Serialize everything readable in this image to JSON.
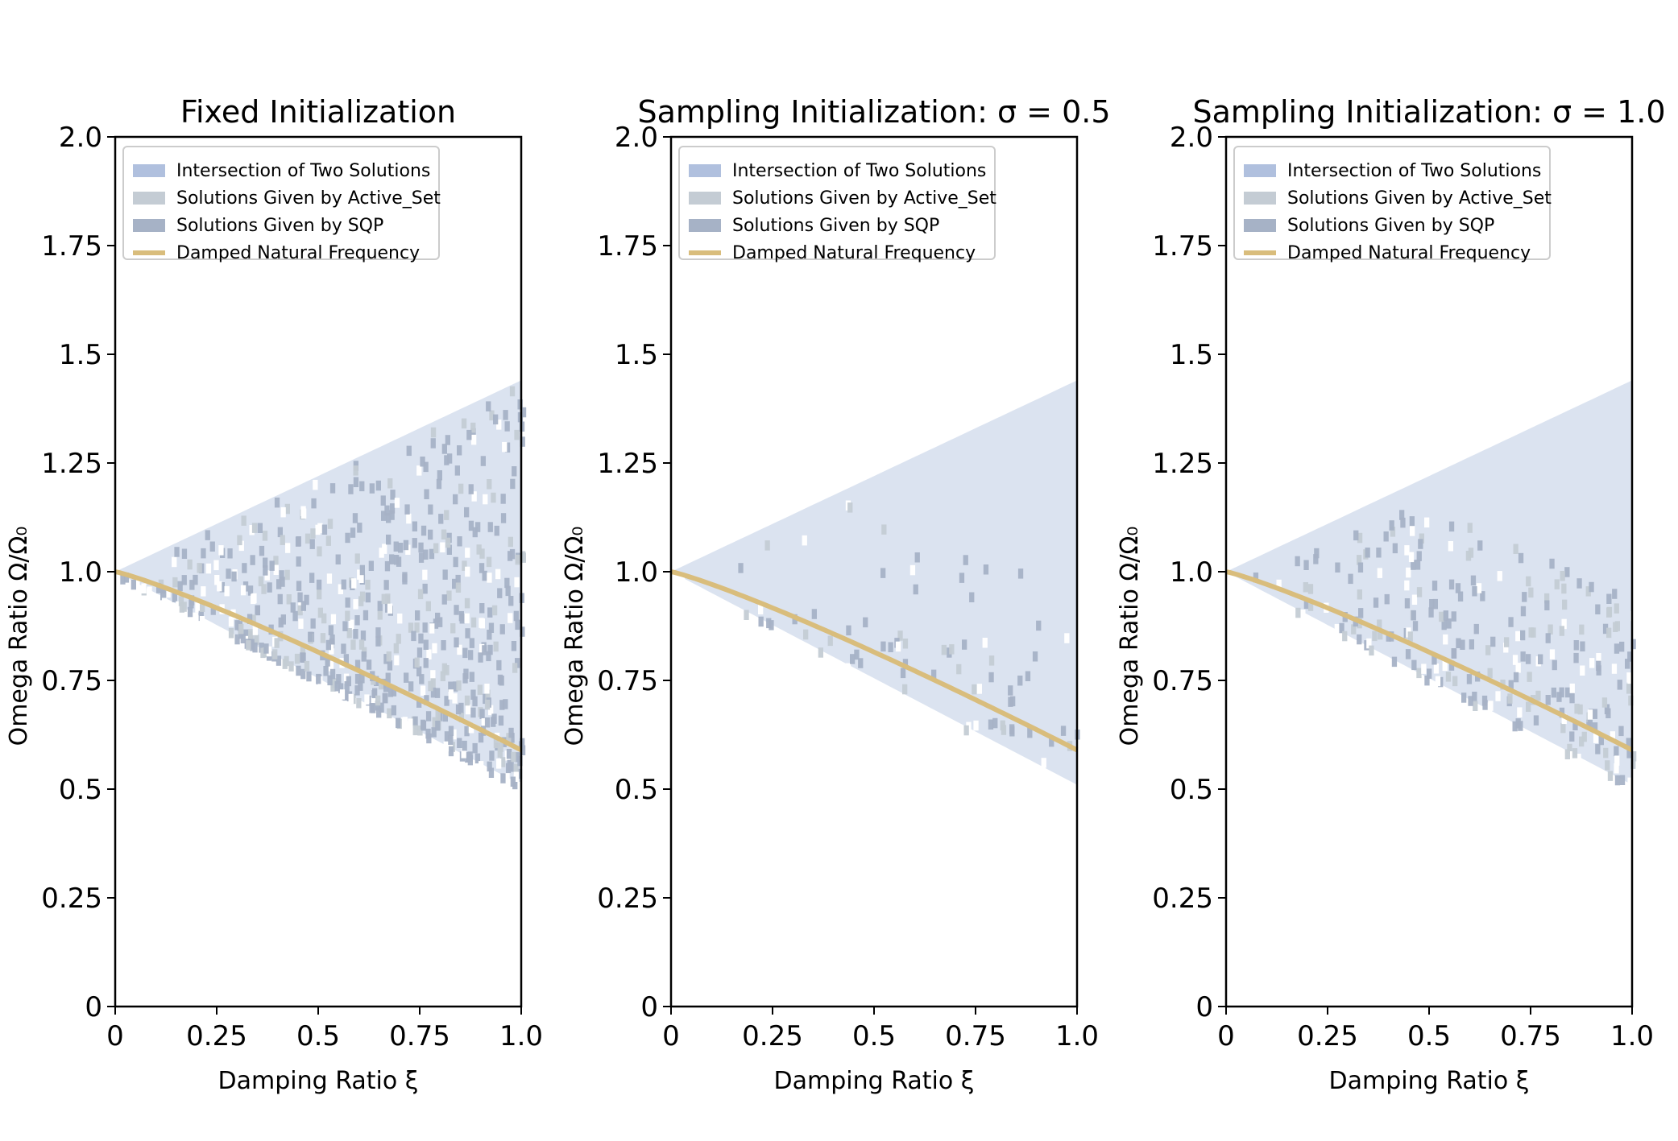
{
  "colors": {
    "intersection": "#b0c0de",
    "active_set": "#c4ccd4",
    "sqp": "#a6b2c6",
    "damped_curve": "#d9bd7c"
  },
  "chart_data": [
    {
      "type": "heatmap",
      "title": "Fixed Initialization",
      "xlabel": "Damping Ratio ξ",
      "ylabel": "Omega Ratio Ω/Ω₀",
      "xlim": [
        0,
        1.0
      ],
      "ylim": [
        0,
        2.0
      ],
      "xticks": [
        0,
        0.25,
        0.5,
        0.75,
        1.0
      ],
      "xtick_labels": [
        "0",
        "0.25",
        "0.5",
        "0.75",
        "1.0"
      ],
      "yticks": [
        0,
        0.25,
        0.5,
        0.75,
        1.0,
        1.25,
        1.5,
        1.75,
        2.0
      ],
      "ytick_labels": [
        "0",
        "0.25",
        "0.5",
        "0.75",
        "1.0",
        "1.25",
        "1.5",
        "1.75",
        "2.0"
      ],
      "legend_position": "upper-left",
      "legend": [
        {
          "label": "Intersection of Two Solutions",
          "kind": "intersection"
        },
        {
          "label": "Solutions Given by Active_Set",
          "kind": "active_set"
        },
        {
          "label": "Solutions Given by SQP",
          "kind": "sqp"
        },
        {
          "label": "Damped Natural Frequency",
          "kind": "line"
        }
      ],
      "region": {
        "x_range": [
          0,
          1.0
        ],
        "upper_end": 1.44,
        "lower_end": 0.51
      },
      "damped_frequency_curve": {
        "formula": "sqrt(1 - ξ²/... )",
        "start": [
          0,
          1.0
        ],
        "end": [
          1.0,
          0.59
        ]
      },
      "scatter": {
        "density": "high",
        "bias": "lower-right",
        "seed": 7,
        "count": 620
      }
    },
    {
      "type": "heatmap",
      "title": "Sampling Initialization: σ = 0.5",
      "xlabel": "Damping Ratio ξ",
      "ylabel": "Omega Ratio Ω/Ω₀",
      "xlim": [
        0,
        1.0
      ],
      "ylim": [
        0,
        2.0
      ],
      "xticks": [
        0,
        0.25,
        0.5,
        0.75,
        1.0
      ],
      "xtick_labels": [
        "0",
        "0.25",
        "0.5",
        "0.75",
        "1.0"
      ],
      "yticks": [
        0,
        0.25,
        0.5,
        0.75,
        1.0,
        1.25,
        1.5,
        1.75,
        2.0
      ],
      "ytick_labels": [
        "0",
        "0.25",
        "0.5",
        "0.75",
        "1.0",
        "1.25",
        "1.5",
        "1.75",
        "2.0"
      ],
      "legend_position": "upper-left",
      "legend": [
        {
          "label": "Intersection of Two Solutions",
          "kind": "intersection"
        },
        {
          "label": "Solutions Given by Active_Set",
          "kind": "active_set"
        },
        {
          "label": "Solutions Given by SQP",
          "kind": "sqp"
        },
        {
          "label": "Damped Natural Frequency",
          "kind": "line"
        }
      ],
      "region": {
        "x_range": [
          0,
          1.0
        ],
        "upper_end": 1.44,
        "lower_end": 0.51
      },
      "damped_frequency_curve": {
        "formula": "sqrt(1 - ξ²/... )",
        "start": [
          0,
          1.0
        ],
        "end": [
          1.0,
          0.59
        ]
      },
      "scatter": {
        "density": "low",
        "bias": "lower-right",
        "seed": 21,
        "count": 75
      }
    },
    {
      "type": "heatmap",
      "title": "Sampling Initialization: σ = 1.0",
      "xlabel": "Damping Ratio ξ",
      "ylabel": "Omega Ratio Ω/Ω₀",
      "xlim": [
        0,
        1.0
      ],
      "ylim": [
        0,
        2.0
      ],
      "xticks": [
        0,
        0.25,
        0.5,
        0.75,
        1.0
      ],
      "xtick_labels": [
        "0",
        "0.25",
        "0.5",
        "0.75",
        "1.0"
      ],
      "yticks": [
        0,
        0.25,
        0.5,
        0.75,
        1.0,
        1.25,
        1.5,
        1.75,
        2.0
      ],
      "ytick_labels": [
        "0",
        "0.25",
        "0.5",
        "0.75",
        "1.0",
        "1.25",
        "1.5",
        "1.75",
        "2.0"
      ],
      "legend_position": "upper-left",
      "legend": [
        {
          "label": "Intersection of Two Solutions",
          "kind": "intersection"
        },
        {
          "label": "Solutions Given by Active_Set",
          "kind": "active_set"
        },
        {
          "label": "Solutions Given by SQP",
          "kind": "sqp"
        },
        {
          "label": "Damped Natural Frequency",
          "kind": "line"
        }
      ],
      "region": {
        "x_range": [
          0,
          1.0
        ],
        "upper_end": 1.44,
        "lower_end": 0.51
      },
      "damped_frequency_curve": {
        "formula": "sqrt(1 - ξ²/... )",
        "start": [
          0,
          1.0
        ],
        "end": [
          1.0,
          0.59
        ]
      },
      "scatter": {
        "density": "medium",
        "bias": "lower-right",
        "seed": 42,
        "count": 260
      }
    }
  ]
}
